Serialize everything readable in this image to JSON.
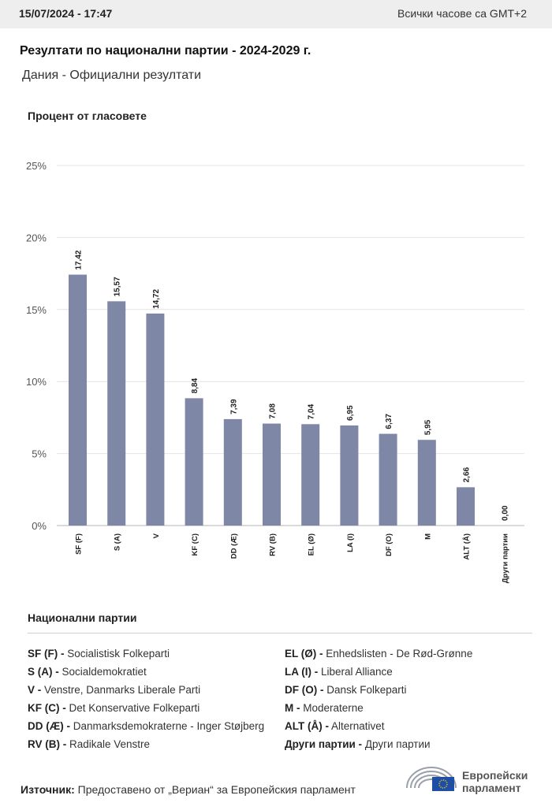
{
  "header": {
    "timestamp": "15/07/2024 - 17:47",
    "timezone": "Всички часове са GMT+2"
  },
  "title": "Резултати по национални партии - 2024-2029 г.",
  "subtitle": "Дания - Официални резултати",
  "chart_data": {
    "type": "bar",
    "ylabel": "Процент от гласовете",
    "xlabel": "",
    "ylim": [
      0,
      25
    ],
    "yticks": [
      "0%",
      "5%",
      "10%",
      "15%",
      "20%",
      "25%"
    ],
    "ytick_values": [
      0,
      5,
      10,
      15,
      20,
      25
    ],
    "grid": true,
    "categories": [
      "SF (F)",
      "S (A)",
      "V",
      "KF (C)",
      "DD (Æ)",
      "RV (B)",
      "EL (Ø)",
      "LA (I)",
      "DF (O)",
      "M",
      "ALT (Å)",
      "Други партии"
    ],
    "values": [
      17.42,
      15.57,
      14.72,
      8.84,
      7.39,
      7.08,
      7.04,
      6.95,
      6.37,
      5.95,
      2.66,
      0.0
    ],
    "value_labels": [
      "17,42",
      "15,57",
      "14,72",
      "8,84",
      "7,39",
      "7,08",
      "7,04",
      "6,95",
      "6,37",
      "5,95",
      "2,66",
      "0,00"
    ],
    "bar_color": "#7e88a6"
  },
  "legend": {
    "title": "Национални партии",
    "left": [
      {
        "code": "SF (F) -",
        "name": "Socialistisk Folkeparti"
      },
      {
        "code": "S (A) -",
        "name": "Socialdemokratiet"
      },
      {
        "code": "V -",
        "name": "Venstre, Danmarks Liberale Parti"
      },
      {
        "code": "KF (C) -",
        "name": "Det Konservative Folkeparti"
      },
      {
        "code": "DD (Æ) -",
        "name": "Danmarksdemokraterne - Inger Støjberg"
      },
      {
        "code": "RV (B) -",
        "name": "Radikale Venstre"
      }
    ],
    "right": [
      {
        "code": "EL (Ø) -",
        "name": "Enhedslisten - De Rød-Grønne"
      },
      {
        "code": "LA (I) -",
        "name": "Liberal Alliance"
      },
      {
        "code": "DF (O) -",
        "name": "Dansk Folkeparti"
      },
      {
        "code": "M -",
        "name": "Moderaterne"
      },
      {
        "code": "ALT (Å) -",
        "name": "Alternativet"
      },
      {
        "code": "Други партии -",
        "name": "Други партии"
      }
    ]
  },
  "source": {
    "label": "Източник:",
    "text": "Предоставено от „Вериан“ за Европейския парламент"
  },
  "logo": {
    "line1": "Европейски",
    "line2": "парламент"
  }
}
